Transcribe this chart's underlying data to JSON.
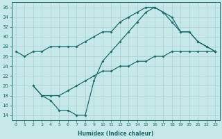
{
  "xlabel": "Humidex (Indice chaleur)",
  "background_color": "#c6e8e8",
  "grid_color": "#a8d0d0",
  "line_color": "#1a6b6b",
  "xlim": [
    -0.5,
    23.5
  ],
  "ylim": [
    13,
    37
  ],
  "yticks": [
    14,
    16,
    18,
    20,
    22,
    24,
    26,
    28,
    30,
    32,
    34,
    36
  ],
  "xticks": [
    0,
    1,
    2,
    3,
    4,
    5,
    6,
    7,
    8,
    9,
    10,
    11,
    12,
    13,
    14,
    15,
    16,
    17,
    18,
    19,
    20,
    21,
    22,
    23
  ],
  "arch_x": [
    0,
    1,
    2,
    3,
    4,
    5,
    6,
    7,
    8,
    9,
    10,
    11,
    12,
    13,
    14,
    15,
    16,
    17,
    18,
    19,
    20,
    21,
    22,
    23
  ],
  "arch_y": [
    27,
    26,
    27,
    27,
    28,
    28,
    28,
    28,
    29,
    30,
    31,
    31,
    33,
    34,
    35,
    36,
    36,
    35,
    33,
    31,
    31,
    29,
    28,
    27
  ],
  "vrise_x": [
    2,
    3,
    4,
    5,
    6,
    7,
    8,
    9,
    10,
    11,
    12,
    13,
    14,
    15,
    16,
    17,
    18,
    19,
    20,
    21,
    22,
    23
  ],
  "vrise_y": [
    20,
    18,
    17,
    15,
    15,
    14,
    14,
    21,
    25,
    27,
    29,
    31,
    33,
    35,
    36,
    35,
    34,
    31,
    31,
    29,
    28,
    27
  ],
  "diag_x": [
    2,
    3,
    4,
    5,
    6,
    7,
    8,
    9,
    10,
    11,
    12,
    13,
    14,
    15,
    16,
    17,
    18,
    19,
    20,
    21,
    22,
    23
  ],
  "diag_y": [
    20,
    18,
    18,
    18,
    19,
    20,
    21,
    22,
    23,
    23,
    24,
    24,
    25,
    25,
    26,
    26,
    27,
    27,
    27,
    27,
    27,
    27
  ]
}
